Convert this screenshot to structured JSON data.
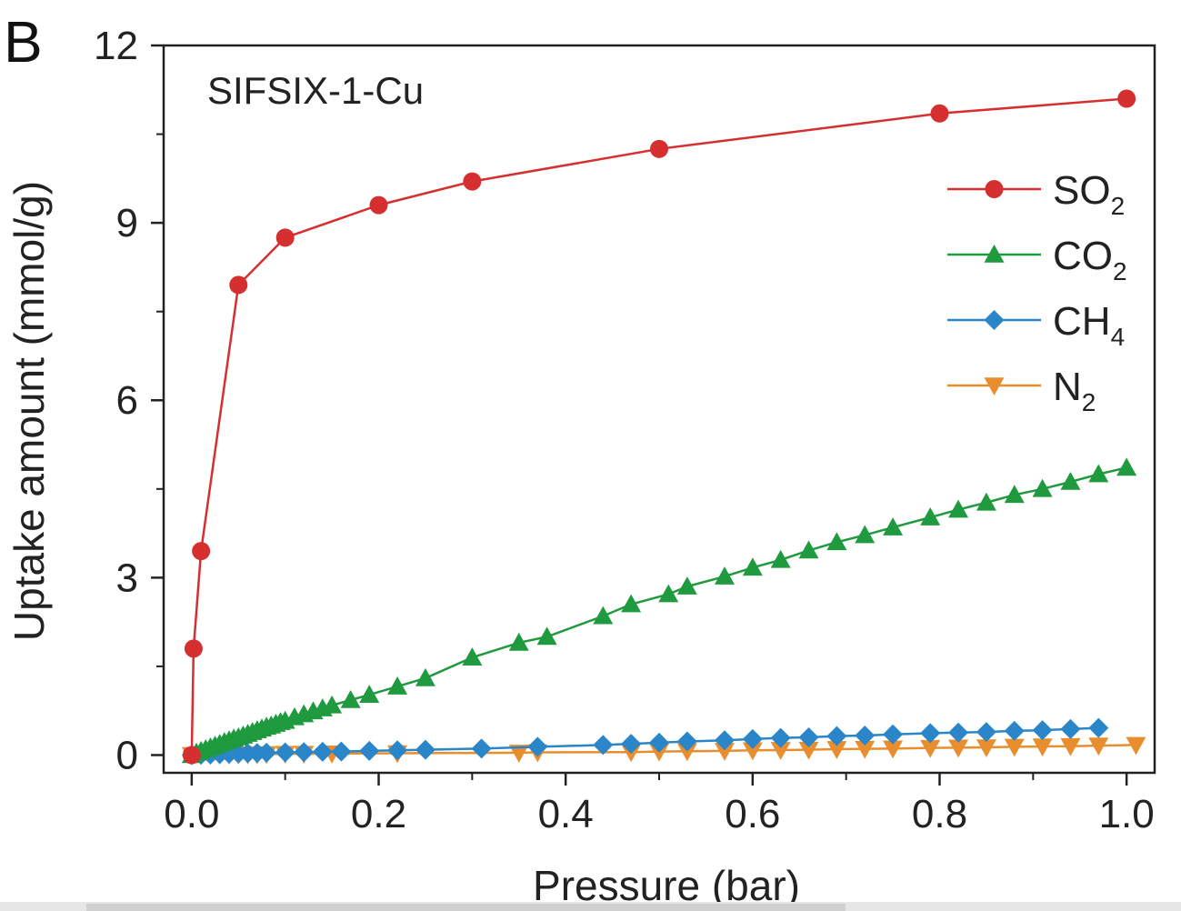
{
  "panel_letter": "B",
  "chart_data": {
    "type": "line",
    "title": "SIFSIX-1-Cu",
    "xlabel": "Pressure (bar)",
    "ylabel": "Uptake amount (mmol/g)",
    "xlim": [
      -0.03,
      1.03
    ],
    "ylim": [
      -0.3,
      12
    ],
    "xticks": [
      0.0,
      0.2,
      0.4,
      0.6,
      0.8,
      1.0
    ],
    "xtick_labels": [
      "0.0",
      "0.2",
      "0.4",
      "0.6",
      "0.8",
      "1.0"
    ],
    "yticks": [
      0,
      3,
      6,
      9,
      12
    ],
    "ytick_labels": [
      "0",
      "3",
      "6",
      "9",
      "12"
    ],
    "legend_position": "top-right",
    "grid": false,
    "series": [
      {
        "name": "SO2",
        "name_main": "SO",
        "name_sub": "2",
        "color": "#d62f2f",
        "marker": "circle",
        "x": [
          0.0,
          0.002,
          0.01,
          0.05,
          0.1,
          0.2,
          0.3,
          0.5,
          0.8,
          1.0
        ],
        "y": [
          0.0,
          1.8,
          3.45,
          7.95,
          8.75,
          9.3,
          9.7,
          10.25,
          10.85,
          11.1
        ]
      },
      {
        "name": "CO2",
        "name_main": "CO",
        "name_sub": "2",
        "color": "#1f9a3f",
        "marker": "triangle-up",
        "x": [
          0.0,
          0.005,
          0.01,
          0.015,
          0.02,
          0.025,
          0.03,
          0.035,
          0.04,
          0.045,
          0.05,
          0.055,
          0.06,
          0.065,
          0.07,
          0.075,
          0.08,
          0.085,
          0.09,
          0.095,
          0.1,
          0.11,
          0.12,
          0.13,
          0.14,
          0.15,
          0.17,
          0.19,
          0.22,
          0.25,
          0.3,
          0.35,
          0.38,
          0.44,
          0.47,
          0.51,
          0.53,
          0.57,
          0.6,
          0.63,
          0.66,
          0.69,
          0.72,
          0.75,
          0.79,
          0.82,
          0.85,
          0.88,
          0.91,
          0.94,
          0.97,
          1.0
        ],
        "y": [
          0.0,
          0.04,
          0.07,
          0.1,
          0.13,
          0.16,
          0.19,
          0.22,
          0.25,
          0.28,
          0.3,
          0.33,
          0.36,
          0.39,
          0.42,
          0.45,
          0.48,
          0.5,
          0.53,
          0.56,
          0.58,
          0.64,
          0.69,
          0.74,
          0.79,
          0.84,
          0.93,
          1.02,
          1.16,
          1.3,
          1.65,
          1.9,
          2.0,
          2.35,
          2.55,
          2.72,
          2.85,
          3.02,
          3.17,
          3.3,
          3.46,
          3.6,
          3.72,
          3.85,
          4.02,
          4.15,
          4.27,
          4.4,
          4.5,
          4.62,
          4.75,
          4.86
        ]
      },
      {
        "name": "CH4",
        "name_main": "CH",
        "name_sub": "4",
        "color": "#2a86c8",
        "marker": "diamond",
        "x": [
          0.0,
          0.01,
          0.02,
          0.03,
          0.04,
          0.05,
          0.06,
          0.07,
          0.08,
          0.1,
          0.12,
          0.14,
          0.16,
          0.19,
          0.22,
          0.25,
          0.31,
          0.37,
          0.44,
          0.47,
          0.5,
          0.53,
          0.57,
          0.6,
          0.63,
          0.66,
          0.69,
          0.72,
          0.75,
          0.79,
          0.82,
          0.85,
          0.88,
          0.91,
          0.94,
          0.97
        ],
        "y": [
          0.0,
          0.005,
          0.01,
          0.015,
          0.02,
          0.025,
          0.03,
          0.035,
          0.04,
          0.045,
          0.05,
          0.055,
          0.06,
          0.07,
          0.08,
          0.09,
          0.11,
          0.14,
          0.17,
          0.19,
          0.21,
          0.23,
          0.25,
          0.27,
          0.29,
          0.3,
          0.32,
          0.33,
          0.35,
          0.37,
          0.38,
          0.39,
          0.41,
          0.42,
          0.44,
          0.46
        ]
      },
      {
        "name": "N2",
        "name_main": "N",
        "name_sub": "2",
        "color": "#e88e2f",
        "marker": "triangle-down",
        "x": [
          0.0,
          0.01,
          0.02,
          0.03,
          0.04,
          0.05,
          0.06,
          0.07,
          0.08,
          0.1,
          0.12,
          0.15,
          0.22,
          0.35,
          0.37,
          0.47,
          0.5,
          0.53,
          0.57,
          0.6,
          0.63,
          0.66,
          0.69,
          0.72,
          0.75,
          0.79,
          0.82,
          0.85,
          0.88,
          0.91,
          0.94,
          0.97,
          1.01
        ],
        "y": [
          0.0,
          0.0,
          0.005,
          0.005,
          0.008,
          0.01,
          0.01,
          0.012,
          0.015,
          0.02,
          0.02,
          0.025,
          0.03,
          0.04,
          0.045,
          0.05,
          0.06,
          0.065,
          0.07,
          0.08,
          0.085,
          0.09,
          0.1,
          0.105,
          0.11,
          0.12,
          0.125,
          0.13,
          0.14,
          0.145,
          0.15,
          0.16,
          0.17
        ]
      }
    ]
  }
}
